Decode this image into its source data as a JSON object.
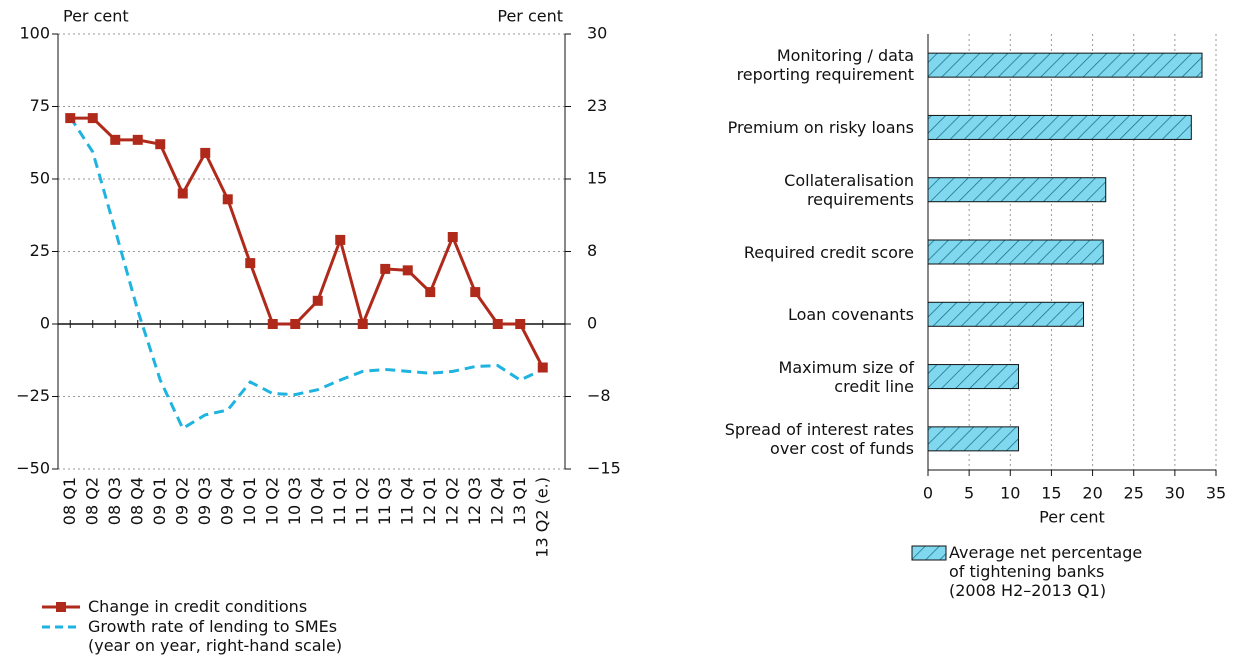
{
  "chart_data": [
    {
      "type": "line",
      "ylabel": "Per cent",
      "y2label": "Per cent",
      "categories": [
        "08 Q1",
        "08 Q2",
        "08 Q3",
        "08 Q4",
        "09 Q1",
        "09 Q2",
        "09 Q3",
        "09 Q4",
        "10 Q1",
        "10 Q2",
        "10 Q3",
        "10 Q4",
        "11 Q1",
        "11 Q2",
        "11 Q3",
        "11 Q4",
        "12 Q1",
        "12 Q2",
        "12 Q3",
        "12 Q4",
        "13 Q1",
        "13 Q2 (e.)"
      ],
      "ylim": [
        -50,
        100
      ],
      "yticks": [
        {
          "value": -50,
          "label": "−50"
        },
        {
          "value": -25,
          "label": "−25"
        },
        0,
        25,
        50,
        75,
        100
      ],
      "y2lim": [
        -15,
        30
      ],
      "y2ticks": [
        {
          "value": -15,
          "label": "−15"
        },
        {
          "value": -7.5,
          "label": "−8"
        },
        0,
        {
          "value": 7.5,
          "label": "8"
        },
        15,
        {
          "value": 22.5,
          "label": "23"
        },
        30
      ],
      "grid": true,
      "series": [
        {
          "name": "Change in credit conditions",
          "color": "#b02a1c",
          "marker": "square",
          "values": [
            71,
            71,
            63.5,
            63.5,
            62,
            45,
            59,
            43,
            21,
            0,
            0,
            8,
            29,
            0,
            19,
            18.5,
            11,
            30,
            11,
            0,
            0,
            -15
          ]
        },
        {
          "name": "Growth rate of lending to SMEs\n(year on year, right-hand scale)",
          "color": "#1fb3e0",
          "axis": "y2",
          "dashed": true,
          "values": [
            21.4,
            17.8,
            9.7,
            1.4,
            -5.8,
            -10.8,
            -9.4,
            -8.9,
            -6,
            -7.2,
            -7.3,
            -6.8,
            -5.8,
            -4.9,
            -4.7,
            -4.9,
            -5.1,
            -4.9,
            -4.4,
            -4.3,
            -5.8,
            -4.7
          ]
        }
      ]
    },
    {
      "type": "hbar",
      "xlabel": "Per cent",
      "categories": [
        "Monitoring / data\nreporting requirement",
        "Premium on risky loans",
        "Collateralisation\nrequirements",
        "Required credit score",
        "Loan covenants",
        "Maximum size of\ncredit line",
        "Spread of interest rates\nover cost of funds"
      ],
      "xlim": [
        0,
        35
      ],
      "xticks": [
        0,
        5,
        10,
        15,
        20,
        25,
        30,
        35
      ],
      "grid": true,
      "series": [
        {
          "name": "Average net percentage\nof tightening banks\n(2008 H2–2013 Q1)",
          "color": "#7fd8ee",
          "hatch": true,
          "values": [
            33.3,
            32,
            21.6,
            21.3,
            18.9,
            11,
            11
          ]
        }
      ]
    }
  ]
}
